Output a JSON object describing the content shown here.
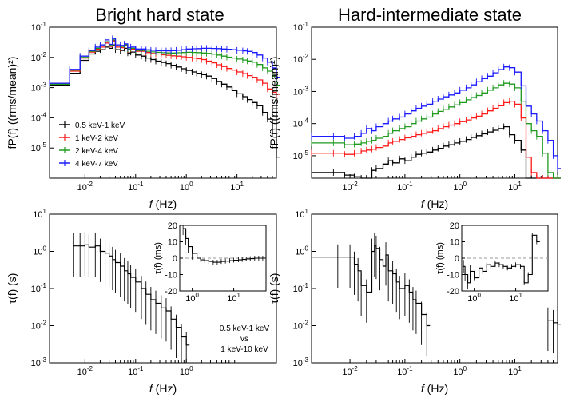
{
  "figure": {
    "left_title": "Bright hard state",
    "right_title": "Hard-intermediate state"
  },
  "colors": {
    "black": "#000000",
    "red": "#ff1a1a",
    "green": "#1f9a1f",
    "blue": "#1a1aff",
    "zero_line": "#999999"
  },
  "chart_data": [
    {
      "id": "psd-bright",
      "type": "line",
      "title": "Bright hard state",
      "xlabel_italic": "f",
      "xlabel_unit": "(Hz)",
      "ylabel": "fP(f) ((rms/mean)²)",
      "xscale": "log",
      "yscale": "log",
      "xlim": [
        0.002,
        60
      ],
      "ylim": [
        1e-06,
        0.1
      ],
      "xticks": [
        {
          "v": 0.01,
          "label": "10",
          "exp": "-2"
        },
        {
          "v": 0.1,
          "label": "10",
          "exp": "-1"
        },
        {
          "v": 1,
          "label": "10",
          "exp": "0"
        },
        {
          "v": 10,
          "label": "10",
          "exp": "1"
        }
      ],
      "yticks": [
        {
          "v": 1e-05,
          "label": "10",
          "exp": "-5"
        },
        {
          "v": 0.0001,
          "label": "10",
          "exp": "-4"
        },
        {
          "v": 0.001,
          "label": "10",
          "exp": "-3"
        },
        {
          "v": 0.01,
          "label": "10",
          "exp": "-2"
        },
        {
          "v": 0.1,
          "label": "10",
          "exp": "-1"
        }
      ],
      "legend": [
        "0.5 keV-1 keV",
        "1 keV-2 keV",
        "2 keV-4 keV",
        "4 keV-7 keV"
      ],
      "legend_position": "lower-left",
      "x": [
        0.002,
        0.005,
        0.008,
        0.012,
        0.016,
        0.02,
        0.025,
        0.03,
        0.035,
        0.04,
        0.05,
        0.06,
        0.07,
        0.08,
        0.1,
        0.13,
        0.16,
        0.2,
        0.25,
        0.32,
        0.4,
        0.5,
        0.63,
        0.8,
        1.0,
        1.3,
        1.6,
        2.0,
        2.5,
        3.2,
        4.0,
        5.0,
        6.3,
        8.0,
        10,
        13,
        16,
        20,
        25,
        32,
        40,
        50,
        60
      ],
      "series": [
        {
          "name": "0.5 keV-1 keV",
          "color": "black",
          "values": [
            0.0012,
            0.003,
            0.008,
            0.013,
            0.016,
            0.018,
            0.022,
            0.02,
            0.026,
            0.018,
            0.017,
            0.02,
            0.014,
            0.015,
            0.012,
            0.011,
            0.0095,
            0.0085,
            0.0075,
            0.0068,
            0.0062,
            0.0055,
            0.0048,
            0.0042,
            0.0037,
            0.0033,
            0.003,
            0.0027,
            0.0024,
            0.002,
            0.0016,
            0.0013,
            0.00105,
            0.0008,
            0.00062,
            0.0005,
            0.0004,
            0.00032,
            0.00025,
            0.00015,
            9e-05,
            3e-05,
            5e-06
          ]
        },
        {
          "name": "1 keV-2 keV",
          "color": "red",
          "values": [
            0.0013,
            0.0035,
            0.0095,
            0.015,
            0.019,
            0.022,
            0.03,
            0.023,
            0.035,
            0.022,
            0.021,
            0.025,
            0.018,
            0.019,
            0.016,
            0.016,
            0.0145,
            0.0135,
            0.013,
            0.0122,
            0.0118,
            0.0113,
            0.011,
            0.0105,
            0.01,
            0.0095,
            0.009,
            0.0085,
            0.0075,
            0.0066,
            0.0057,
            0.005,
            0.0043,
            0.0038,
            0.0033,
            0.0029,
            0.0025,
            0.0022,
            0.0018,
            0.0014,
            0.0009,
            0.0007,
            0.0006
          ]
        },
        {
          "name": "2 keV-4 keV",
          "color": "green",
          "values": [
            0.0013,
            0.0038,
            0.01,
            0.016,
            0.02,
            0.024,
            0.033,
            0.025,
            0.038,
            0.024,
            0.023,
            0.026,
            0.019,
            0.02,
            0.017,
            0.017,
            0.016,
            0.0152,
            0.0148,
            0.0143,
            0.0141,
            0.014,
            0.0142,
            0.0145,
            0.0148,
            0.0146,
            0.0144,
            0.014,
            0.0136,
            0.0128,
            0.012,
            0.011,
            0.0102,
            0.0095,
            0.0088,
            0.0082,
            0.0076,
            0.007,
            0.0058,
            0.0045,
            0.0035,
            0.0024,
            0.0012
          ]
        },
        {
          "name": "4 keV-7 keV",
          "color": "blue",
          "values": [
            0.0014,
            0.004,
            0.011,
            0.017,
            0.022,
            0.026,
            0.038,
            0.027,
            0.042,
            0.026,
            0.025,
            0.028,
            0.021,
            0.022,
            0.019,
            0.019,
            0.0178,
            0.0172,
            0.0168,
            0.0166,
            0.0165,
            0.0167,
            0.0172,
            0.018,
            0.019,
            0.0193,
            0.0196,
            0.02,
            0.02,
            0.0198,
            0.0195,
            0.019,
            0.0185,
            0.018,
            0.0172,
            0.0165,
            0.0158,
            0.0145,
            0.012,
            0.0095,
            0.007,
            0.0045,
            0.0022
          ]
        }
      ]
    },
    {
      "id": "psd-hims",
      "type": "line",
      "title": "Hard-intermediate state",
      "xlabel_italic": "f",
      "xlabel_unit": "(Hz)",
      "ylabel": "fP(f) ((rms/mean)²)",
      "xscale": "log",
      "yscale": "log",
      "xlim": [
        0.002,
        60
      ],
      "ylim": [
        2e-06,
        0.1
      ],
      "xticks": [
        {
          "v": 0.01,
          "label": "10",
          "exp": "-2"
        },
        {
          "v": 0.1,
          "label": "10",
          "exp": "-1"
        },
        {
          "v": 1,
          "label": "10",
          "exp": "0"
        },
        {
          "v": 10,
          "label": "10",
          "exp": "1"
        }
      ],
      "yticks": [
        {
          "v": 1e-05,
          "label": "10",
          "exp": "-5"
        },
        {
          "v": 0.0001,
          "label": "10",
          "exp": "-4"
        },
        {
          "v": 0.001,
          "label": "10",
          "exp": "-3"
        },
        {
          "v": 0.01,
          "label": "10",
          "exp": "-2"
        },
        {
          "v": 0.1,
          "label": "10",
          "exp": "-1"
        }
      ],
      "x": [
        0.002,
        0.005,
        0.008,
        0.012,
        0.016,
        0.02,
        0.025,
        0.03,
        0.04,
        0.05,
        0.06,
        0.08,
        0.1,
        0.13,
        0.16,
        0.2,
        0.25,
        0.32,
        0.4,
        0.5,
        0.63,
        0.8,
        1.0,
        1.3,
        1.6,
        2.0,
        2.5,
        3.2,
        4.0,
        5.0,
        6.3,
        8.0,
        10,
        13,
        16,
        20,
        25,
        32,
        40,
        50,
        60
      ],
      "series": [
        {
          "name": "0.5 keV-1 keV",
          "color": "black",
          "values": [
            3e-06,
            3e-06,
            2.5e-06,
            2.2e-06,
            2e-06,
            2e-06,
            3.5e-06,
            4e-06,
            5.5e-06,
            7e-06,
            6e-06,
            8e-06,
            7e-06,
            9e-06,
            1.1e-05,
            1.2e-05,
            1.3e-05,
            1.5e-05,
            1.7e-05,
            2e-05,
            2.2e-05,
            2.5e-05,
            2.8e-05,
            3.2e-05,
            3.7e-05,
            4.2e-05,
            4.8e-05,
            5.5e-05,
            6.2e-05,
            7e-05,
            8e-05,
            4.5e-05,
            3e-05,
            1.5e-05,
            2e-06,
            2e-06,
            2e-06,
            2e-06,
            2e-06,
            2e-06,
            2e-06
          ]
        },
        {
          "name": "1 keV-2 keV",
          "color": "red",
          "values": [
            1.2e-05,
            1.2e-05,
            1.1e-05,
            1.2e-05,
            1.4e-05,
            1.5e-05,
            1.6e-05,
            1.8e-05,
            2e-05,
            2.5e-05,
            2.8e-05,
            3.2e-05,
            3.6e-05,
            4e-05,
            4.5e-05,
            5e-05,
            5.5e-05,
            6e-05,
            7e-05,
            8e-05,
            9e-05,
            0.0001,
            0.000115,
            0.00013,
            0.00015,
            0.00017,
            0.0002,
            0.00025,
            0.0003,
            0.00036,
            0.00045,
            0.0005,
            0.0004,
            0.00015,
            9e-06,
            3e-06,
            2e-06,
            2e-06,
            2e-06,
            2e-06,
            2e-06
          ]
        },
        {
          "name": "2 keV-4 keV",
          "color": "green",
          "values": [
            2.5e-05,
            2.5e-05,
            2.2e-05,
            2.3e-05,
            2.5e-05,
            2.8e-05,
            3e-05,
            3.5e-05,
            4e-05,
            5e-05,
            6e-05,
            7e-05,
            8e-05,
            0.0001,
            0.00012,
            0.00014,
            0.00016,
            0.0002,
            0.00024,
            0.00028,
            0.00033,
            0.00038,
            0.00045,
            0.00055,
            0.00065,
            0.00075,
            0.0009,
            0.0011,
            0.0013,
            0.0016,
            0.0018,
            0.0017,
            0.0013,
            0.0005,
            0.0001,
            6e-05,
            4e-05,
            1.2e-05,
            3e-06,
            2e-06,
            2e-06
          ]
        },
        {
          "name": "4 keV-7 keV",
          "color": "blue",
          "values": [
            4e-05,
            4e-05,
            3.5e-05,
            4e-05,
            5e-05,
            7e-05,
            6e-05,
            8e-05,
            0.0001,
            0.00012,
            0.00014,
            0.00016,
            0.0002,
            0.00025,
            0.0003,
            0.00035,
            0.0004,
            0.0005,
            0.00058,
            0.00068,
            0.00078,
            0.0009,
            0.0011,
            0.0013,
            0.0016,
            0.002,
            0.0025,
            0.003,
            0.0038,
            0.0048,
            0.0058,
            0.0055,
            0.004,
            0.0015,
            0.00035,
            0.0002,
            0.00012,
            6e-05,
            3e-05,
            1e-05,
            4e-06
          ]
        }
      ]
    },
    {
      "id": "lag-bright",
      "type": "line",
      "xlabel_italic": "f",
      "xlabel_unit": "(Hz)",
      "ylabel": "τ(f) (s)",
      "xscale": "log",
      "yscale": "log",
      "xlim": [
        0.002,
        60
      ],
      "ylim": [
        0.001,
        10
      ],
      "xticks": [
        {
          "v": 0.01,
          "label": "10",
          "exp": "-2"
        },
        {
          "v": 0.1,
          "label": "10",
          "exp": "-1"
        },
        {
          "v": 1,
          "label": "10",
          "exp": "0"
        }
      ],
      "yticks": [
        {
          "v": 0.001,
          "label": "10",
          "exp": "-3"
        },
        {
          "v": 0.01,
          "label": "10",
          "exp": "-2"
        },
        {
          "v": 0.1,
          "label": "10",
          "exp": "-1"
        },
        {
          "v": 1,
          "label": "10",
          "exp": "0"
        },
        {
          "v": 10,
          "label": "10",
          "exp": "1"
        }
      ],
      "annotation": [
        "0.5 keV-1 keV",
        "vs",
        "1 keV-10 keV"
      ],
      "series": [
        {
          "name": "lag",
          "color": "black",
          "x": [
            0.006,
            0.008,
            0.01,
            0.012,
            0.016,
            0.02,
            0.025,
            0.03,
            0.035,
            0.04,
            0.05,
            0.06,
            0.07,
            0.08,
            0.1,
            0.13,
            0.16,
            0.2,
            0.25,
            0.32,
            0.4,
            0.5,
            0.63,
            0.8,
            1.0
          ],
          "values": [
            1.4,
            1.4,
            1.5,
            1.3,
            1.4,
            1.0,
            0.9,
            0.75,
            0.6,
            0.5,
            0.4,
            0.3,
            0.25,
            0.2,
            0.15,
            0.1,
            0.07,
            0.05,
            0.04,
            0.03,
            0.025,
            0.015,
            0.009,
            0.005,
            0.003
          ]
        }
      ],
      "inset": {
        "ylabel": "τ(f) (ms)",
        "xscale": "log",
        "xlim": [
          0.5,
          60
        ],
        "ylim": [
          -20,
          20
        ],
        "yticks": [
          20,
          10,
          0,
          -10,
          -20
        ],
        "xticks": [
          {
            "v": 1,
            "label": "10",
            "exp": "0"
          },
          {
            "v": 10,
            "label": "10",
            "exp": "1"
          }
        ],
        "x": [
          0.6,
          0.7,
          0.8,
          1.0,
          1.3,
          1.6,
          2.0,
          2.5,
          3.2,
          4.0,
          5.0,
          6.3,
          8.0,
          10,
          13,
          16,
          20,
          25,
          32,
          40,
          50
        ],
        "values": [
          18,
          12,
          7,
          3,
          0,
          -1,
          -1.5,
          -2,
          -2.5,
          -2.5,
          -2,
          -1.8,
          -1.5,
          -1.2,
          -1,
          -0.8,
          -0.5,
          -0.3,
          0,
          0,
          0
        ]
      }
    },
    {
      "id": "lag-hims",
      "type": "line",
      "xlabel_italic": "f",
      "xlabel_unit": "(Hz)",
      "ylabel": "τ(f) (s)",
      "xscale": "log",
      "yscale": "log",
      "xlim": [
        0.002,
        60
      ],
      "ylim": [
        0.001,
        10
      ],
      "xticks": [
        {
          "v": 0.01,
          "label": "10",
          "exp": "-2"
        },
        {
          "v": 0.1,
          "label": "10",
          "exp": "-1"
        },
        {
          "v": 1,
          "label": "10",
          "exp": "0"
        },
        {
          "v": 10,
          "label": "10",
          "exp": "1"
        }
      ],
      "yticks": [
        {
          "v": 0.001,
          "label": "10",
          "exp": "-3"
        },
        {
          "v": 0.01,
          "label": "10",
          "exp": "-2"
        },
        {
          "v": 0.1,
          "label": "10",
          "exp": "-1"
        },
        {
          "v": 1,
          "label": "10",
          "exp": "0"
        },
        {
          "v": 10,
          "label": "10",
          "exp": "1"
        }
      ],
      "series": [
        {
          "name": "lag",
          "color": "black",
          "x": [
            0.002,
            0.006,
            0.01,
            0.012,
            0.014,
            0.016,
            0.02,
            0.025,
            0.028,
            0.03,
            0.035,
            0.04,
            0.045,
            0.05,
            0.06,
            0.07,
            0.08,
            0.1,
            0.12,
            0.14,
            0.16,
            0.2,
            0.25,
            40,
            50,
            60
          ],
          "values": [
            0.7,
            0.7,
            0.7,
            0.45,
            0.3,
            0.12,
            0.08,
            1.0,
            1.4,
            1.2,
            0.6,
            0.4,
            0.8,
            0.3,
            0.25,
            0.15,
            0.1,
            0.12,
            0.08,
            0.05,
            0.04,
            0.02,
            0.01,
            0.014,
            0.012,
            0.011
          ]
        }
      ],
      "inset": {
        "ylabel": "τ(f) (ms)",
        "xscale": "log",
        "xlim": [
          0.5,
          60
        ],
        "ylim": [
          -20,
          20
        ],
        "yticks": [
          20,
          10,
          0,
          -10,
          -20
        ],
        "xticks": [
          {
            "v": 1,
            "label": "10",
            "exp": "0"
          },
          {
            "v": 10,
            "label": "10",
            "exp": "1"
          }
        ],
        "x": [
          0.55,
          0.6,
          0.7,
          0.8,
          1.0,
          1.3,
          1.6,
          2.0,
          2.5,
          3.2,
          4.0,
          5.0,
          6.3,
          8.0,
          10,
          13,
          16,
          20,
          25,
          32
        ],
        "values": [
          -5,
          -10,
          -15,
          -8,
          -12,
          -6,
          -8,
          -4,
          -5,
          -3,
          -4,
          -5,
          -6,
          -5,
          -4,
          -5,
          -15,
          -10,
          14,
          10
        ]
      }
    }
  ]
}
